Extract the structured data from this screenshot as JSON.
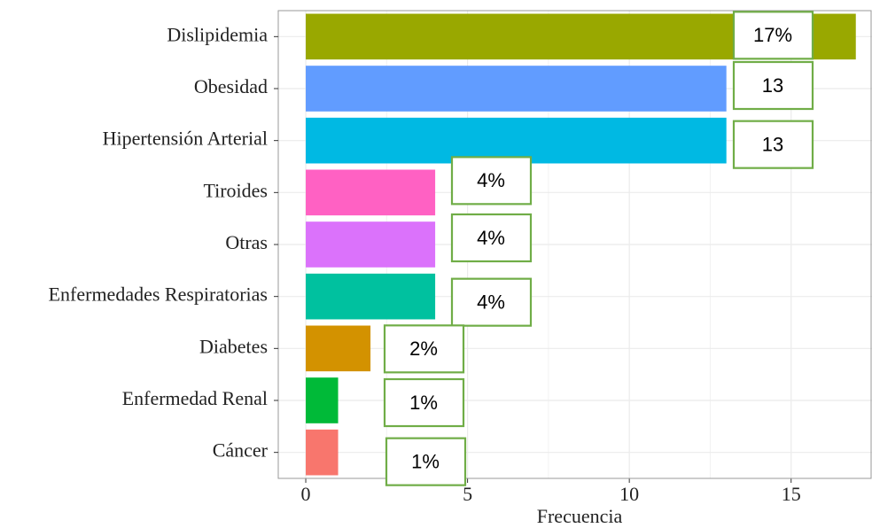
{
  "chart_data": {
    "type": "barh",
    "categories": [
      "Dislipidemia",
      "Obesidad",
      "Hipertensión Arterial",
      "Tiroides",
      "Otras",
      "Enfermedades Respiratorias",
      "Diabetes",
      "Enfermedad Renal",
      "Cáncer"
    ],
    "values": [
      17,
      13,
      13,
      4,
      4,
      4,
      2,
      1,
      1
    ],
    "value_labels": [
      "17%",
      "13",
      "13",
      "4%",
      "4%",
      "4%",
      "2%",
      "1%",
      "1%"
    ],
    "colors": [
      "#99a800",
      "#619cff",
      "#00b9e3",
      "#ff61c3",
      "#db72fb",
      "#00c19f",
      "#d39200",
      "#00ba38",
      "#f8766d"
    ],
    "xlabel": "Frecuencia",
    "xlim": [
      -0.85,
      17.5
    ],
    "xticks": [
      0,
      5,
      10,
      15
    ],
    "grid": true
  }
}
